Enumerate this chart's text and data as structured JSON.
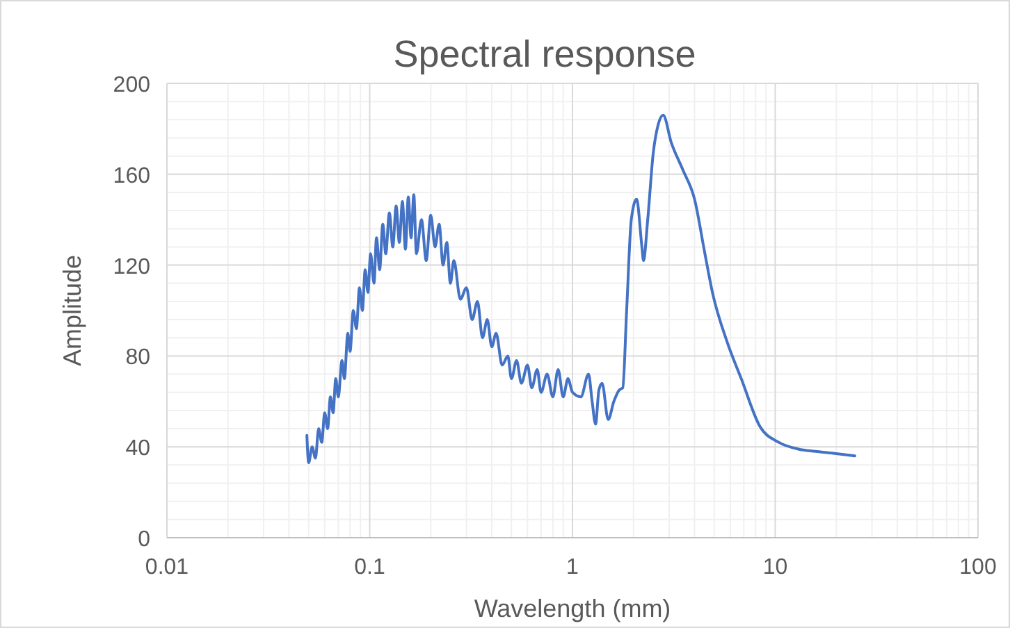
{
  "chart_data": {
    "type": "line",
    "title": "Spectral response",
    "xlabel": "Wavelength (mm)",
    "ylabel": "Amplitude",
    "log": "x",
    "grid": true,
    "xlim": [
      0.01,
      100
    ],
    "xticks": [
      0.01,
      0.1,
      1,
      10,
      100
    ],
    "ylim": [
      0,
      200
    ],
    "yticks": [
      0,
      40,
      80,
      120,
      160,
      200
    ],
    "series": [
      {
        "color": "#4472c4",
        "x": [
          0.049,
          0.05,
          0.052,
          0.054,
          0.056,
          0.058,
          0.06,
          0.062,
          0.064,
          0.066,
          0.068,
          0.07,
          0.073,
          0.075,
          0.078,
          0.08,
          0.083,
          0.086,
          0.089,
          0.092,
          0.095,
          0.098,
          0.101,
          0.105,
          0.108,
          0.112,
          0.116,
          0.12,
          0.125,
          0.13,
          0.135,
          0.14,
          0.145,
          0.15,
          0.155,
          0.16,
          0.165,
          0.17,
          0.18,
          0.19,
          0.2,
          0.21,
          0.22,
          0.23,
          0.24,
          0.25,
          0.26,
          0.28,
          0.3,
          0.32,
          0.34,
          0.36,
          0.38,
          0.4,
          0.42,
          0.45,
          0.48,
          0.5,
          0.53,
          0.56,
          0.6,
          0.63,
          0.67,
          0.7,
          0.75,
          0.8,
          0.85,
          0.9,
          0.95,
          1.0,
          1.1,
          1.2,
          1.25,
          1.3,
          1.35,
          1.4,
          1.5,
          1.6,
          1.7,
          1.77,
          1.85,
          1.95,
          2.07,
          2.2,
          2.24,
          2.35,
          2.5,
          2.65,
          2.8,
          3.07,
          3.5,
          4.0,
          4.5,
          4.9,
          5.8,
          6.8,
          8.4,
          10.4,
          13,
          15.8,
          20,
          24.7
        ],
        "values": [
          45,
          33,
          40,
          35,
          48,
          42,
          55,
          48,
          62,
          55,
          70,
          62,
          78,
          70,
          90,
          82,
          100,
          92,
          110,
          100,
          118,
          108,
          125,
          112,
          132,
          118,
          138,
          125,
          143,
          128,
          146,
          130,
          148,
          127,
          150,
          132,
          151,
          125,
          140,
          122,
          142,
          128,
          138,
          120,
          130,
          112,
          122,
          105,
          110,
          96,
          104,
          88,
          96,
          84,
          90,
          76,
          80,
          70,
          78,
          68,
          76,
          66,
          74,
          64,
          72,
          62,
          74,
          62,
          70,
          64,
          62,
          72,
          60,
          50,
          65,
          68,
          52,
          60,
          65,
          66,
          100,
          140,
          149,
          128,
          122,
          140,
          169,
          182,
          186,
          174,
          162,
          149,
          125,
          108,
          86,
          70,
          49,
          42,
          39,
          38,
          37,
          36
        ]
      }
    ]
  }
}
